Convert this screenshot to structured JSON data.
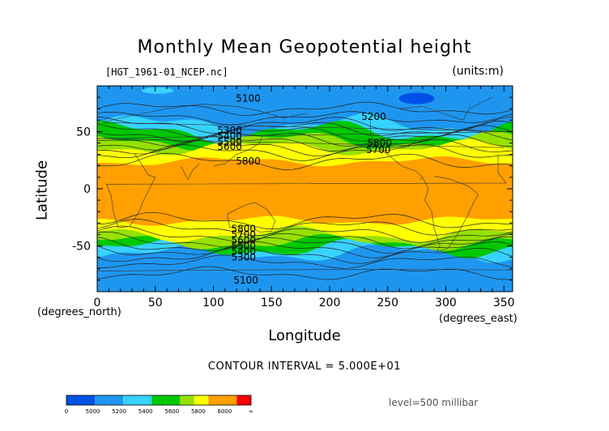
{
  "title": "Monthly Mean Geopotential height",
  "file_label": "[HGT_1961-01_NCEP.nc]",
  "units_label": "(units:m)",
  "x_unit_label": "(degrees_north)",
  "x_unit_label_right": "(degrees_east)",
  "contour_interval": "CONTOUR INTERVAL = 5.000E+01",
  "level_label": "level=500 millibar",
  "chart_data": {
    "type": "heatmap",
    "xlabel": "Longitude",
    "ylabel": "Latitude",
    "xlim": [
      0,
      357.5
    ],
    "ylim": [
      -90,
      90
    ],
    "xticks": [
      0,
      50,
      100,
      150,
      200,
      250,
      300,
      350
    ],
    "yticks": [
      -50,
      0,
      50
    ],
    "contour_labels": [
      {
        "text": "5100",
        "lon": 130,
        "lat": 79
      },
      {
        "text": "5100",
        "lon": 128,
        "lat": -80
      },
      {
        "text": "5200",
        "lon": 238,
        "lat": 63
      },
      {
        "text": "5300",
        "lon": 114,
        "lat": 51
      },
      {
        "text": "5400",
        "lon": 114,
        "lat": 46
      },
      {
        "text": "5500",
        "lon": 114,
        "lat": 41
      },
      {
        "text": "5600",
        "lon": 114,
        "lat": 37
      },
      {
        "text": "5700",
        "lon": 242,
        "lat": 34
      },
      {
        "text": "5800",
        "lon": 243,
        "lat": 40
      },
      {
        "text": "5800",
        "lon": 130,
        "lat": 24
      },
      {
        "text": "5800",
        "lon": 126,
        "lat": -35
      },
      {
        "text": "5700",
        "lon": 126,
        "lat": -40
      },
      {
        "text": "5600",
        "lon": 126,
        "lat": -45
      },
      {
        "text": "5500",
        "lon": 126,
        "lat": -50
      },
      {
        "text": "5400",
        "lon": 126,
        "lat": -55
      },
      {
        "text": "5300",
        "lon": 126,
        "lat": -60
      }
    ],
    "colorbar": {
      "labels": [
        "0",
        "5000",
        "5200",
        "5400",
        "5600",
        "5800",
        "6000",
        "∞"
      ],
      "colors": [
        "#0050e6",
        "#1e96f0",
        "#37d2ff",
        "#00c800",
        "#96e100",
        "#ffff00",
        "#ffa000",
        "#ff0000"
      ]
    }
  }
}
